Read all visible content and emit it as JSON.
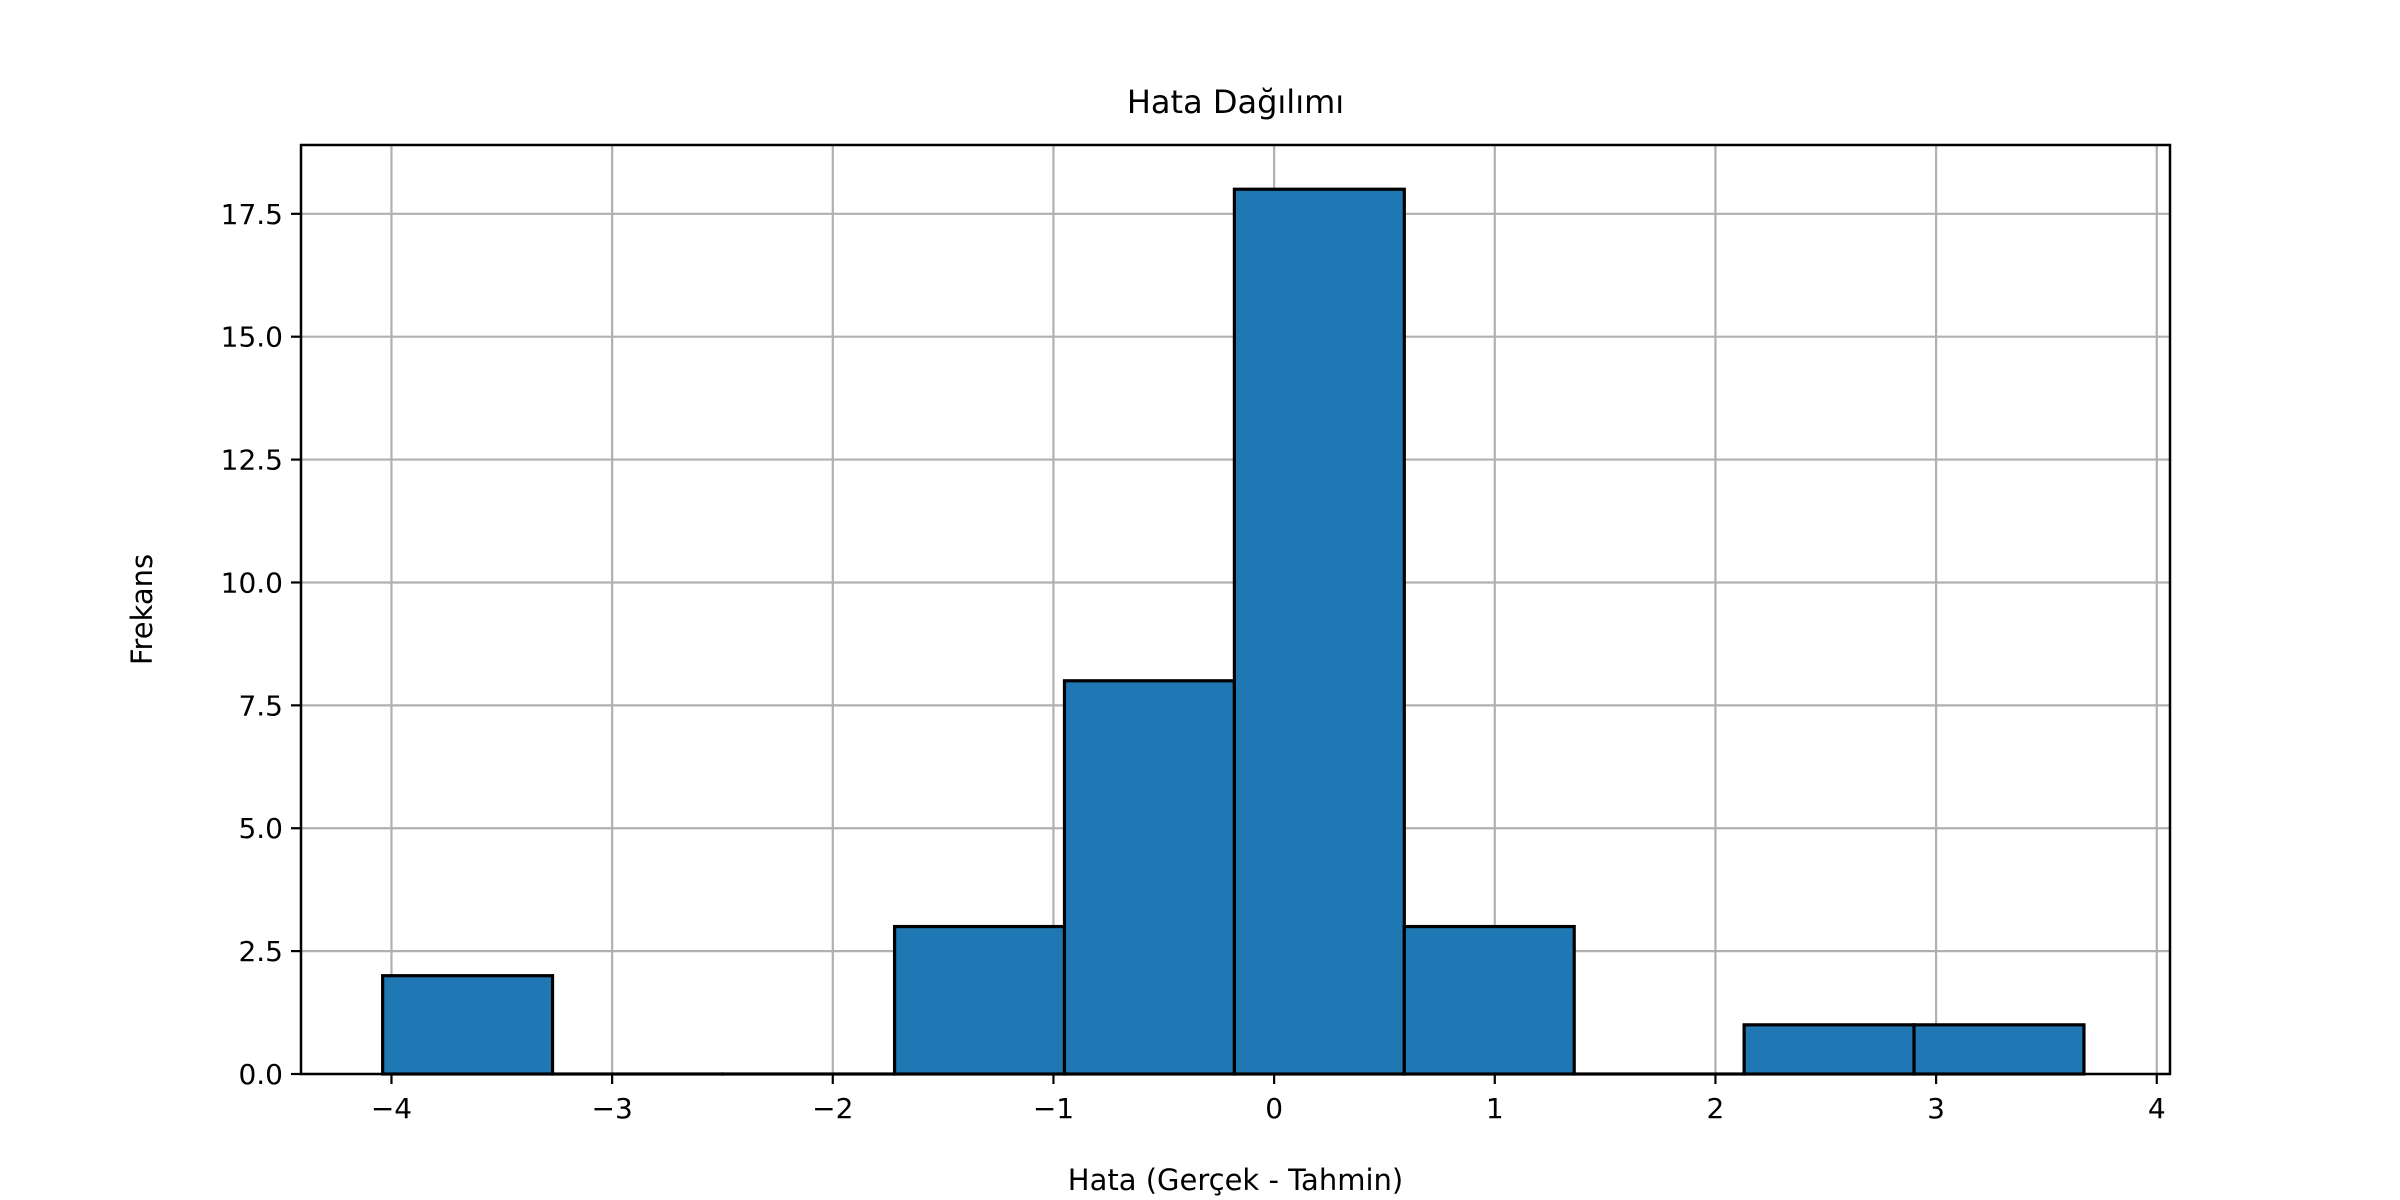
{
  "chart_data": {
    "type": "bar",
    "title": "Hata Dağılımı",
    "xlabel": "Hata (Gerçek - Tahmin)",
    "ylabel": "Frekans",
    "xlim": [
      -4.41,
      4.06
    ],
    "ylim": [
      0,
      18.9
    ],
    "xticks": [
      -4,
      -3,
      -2,
      -1,
      0,
      1,
      2,
      3,
      4
    ],
    "xtick_labels": [
      "−4",
      "−3",
      "−2",
      "−1",
      "0",
      "1",
      "2",
      "3",
      "4"
    ],
    "yticks": [
      0,
      2.5,
      5,
      7.5,
      10,
      12.5,
      15,
      17.5
    ],
    "ytick_labels": [
      "0.0",
      "2.5",
      "5.0",
      "7.5",
      "10.0",
      "12.5",
      "15.0",
      "17.5"
    ],
    "grid": true,
    "legend": "none",
    "bar_color": "#1f77b4",
    "edge_color": "#000000",
    "bins": [
      {
        "x0": -4.04,
        "x1": -3.27,
        "count": 2
      },
      {
        "x0": -3.27,
        "x1": -2.5,
        "count": 0
      },
      {
        "x0": -2.5,
        "x1": -1.72,
        "count": 0
      },
      {
        "x0": -1.72,
        "x1": -0.95,
        "count": 3
      },
      {
        "x0": -0.95,
        "x1": -0.18,
        "count": 8
      },
      {
        "x0": -0.18,
        "x1": 0.59,
        "count": 18
      },
      {
        "x0": 0.59,
        "x1": 1.36,
        "count": 3
      },
      {
        "x0": 1.36,
        "x1": 2.13,
        "count": 0
      },
      {
        "x0": 2.13,
        "x1": 2.9,
        "count": 1
      },
      {
        "x0": 2.9,
        "x1": 3.67,
        "count": 1
      }
    ]
  }
}
